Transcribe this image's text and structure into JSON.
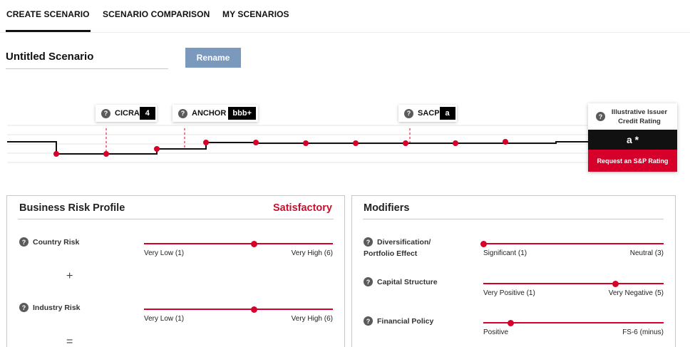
{
  "tabs": [
    {
      "label": "CREATE SCENARIO",
      "active": true
    },
    {
      "label": "SCENARIO COMPARISON",
      "active": false
    },
    {
      "label": "MY SCENARIOS",
      "active": false
    }
  ],
  "scenario": {
    "title": "Untitled Scenario",
    "rename_label": "Rename"
  },
  "rating_chart": {
    "markers": [
      {
        "label": "CICRA",
        "value": "4"
      },
      {
        "label": "ANCHOR",
        "value": "bbb+"
      },
      {
        "label": "SACP",
        "value": "a"
      }
    ],
    "issuer": {
      "label": "Illustrative Issuer Credit Rating",
      "rating": "a *",
      "request_label": "Request an S&P Rating"
    },
    "accent_color": "#d6002a"
  },
  "business_risk": {
    "title": "Business Risk Profile",
    "status": "Satisfactory",
    "operator_plus": "+",
    "operator_equals": "=",
    "factors": [
      {
        "label": "Country Risk",
        "low_label": "Very Low (1)",
        "high_label": "Very High (6)",
        "position": 0.58
      },
      {
        "label": "Industry Risk",
        "low_label": "Very Low (1)",
        "high_label": "Very High (6)",
        "position": 0.58
      }
    ]
  },
  "modifiers": {
    "title": "Modifiers",
    "factors": [
      {
        "label_line1": "Diversification/",
        "label_line2": "Portfolio Effect",
        "low_label": "Significant (1)",
        "high_label": "Neutral (3)",
        "position": 0.0
      },
      {
        "label": "Capital Structure",
        "low_label": "Very Positive (1)",
        "high_label": "Very Negative (5)",
        "position": 0.73
      },
      {
        "label": "Financial Policy",
        "low_label": "Positive",
        "high_label": "FS-6 (minus)",
        "position": 0.15
      }
    ]
  },
  "help_icon_glyph": "?"
}
